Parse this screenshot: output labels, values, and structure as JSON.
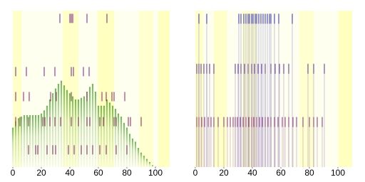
{
  "chart_data": [
    {
      "type": "bar",
      "color": "#4caf2a",
      "xlim": [
        0,
        110
      ],
      "ylim": [
        0,
        1
      ],
      "xticks": [
        0,
        20,
        40,
        60,
        80,
        100
      ],
      "x": [
        0,
        2,
        4,
        6,
        8,
        10,
        12,
        14,
        16,
        18,
        20,
        22,
        24,
        26,
        28,
        30,
        32,
        34,
        36,
        38,
        40,
        42,
        44,
        46,
        48,
        50,
        52,
        54,
        56,
        58,
        60,
        62,
        64,
        66,
        68,
        70,
        72,
        74,
        76,
        78,
        80,
        82,
        84,
        86,
        88,
        90,
        92,
        94,
        96,
        98,
        100
      ],
      "values": [
        0.25,
        0.29,
        0.31,
        0.32,
        0.33,
        0.33,
        0.33,
        0.33,
        0.33,
        0.33,
        0.34,
        0.36,
        0.39,
        0.43,
        0.47,
        0.5,
        0.53,
        0.55,
        0.52,
        0.49,
        0.47,
        0.45,
        0.43,
        0.43,
        0.44,
        0.45,
        0.48,
        0.51,
        0.53,
        0.48,
        0.39,
        0.39,
        0.39,
        0.43,
        0.41,
        0.39,
        0.37,
        0.34,
        0.32,
        0.28,
        0.25,
        0.21,
        0.18,
        0.16,
        0.12,
        0.09,
        0.07,
        0.05,
        0.03,
        0.01,
        0
      ],
      "rugs": [
        {
          "level": 0.98,
          "color": "#7a1e8a",
          "x": [
            33,
            40,
            41,
            42,
            52,
            66
          ]
        },
        {
          "level": 0.64,
          "color": "#7a1e8a",
          "x": [
            2,
            9.5,
            22,
            29.5,
            41,
            42.5,
            49.5,
            53.5
          ]
        },
        {
          "level": 0.48,
          "color": "#8a1e6a",
          "x": [
            2,
            7.5,
            11.5,
            26.5,
            30.5,
            41,
            52,
            62.5,
            65.5,
            69.5,
            71,
            78.5
          ]
        },
        {
          "level": 0.32,
          "color": "#8a1e5a",
          "x": [
            2,
            5,
            11,
            21,
            22.5,
            26,
            29.5,
            33.5,
            41,
            46,
            52,
            54,
            61,
            63.5,
            71,
            72.5,
            81,
            82.5,
            90
          ]
        },
        {
          "level": 0.14,
          "color": "#8a1e5a",
          "x": [
            11,
            16,
            17.5,
            24,
            28,
            30,
            39,
            43,
            48,
            52,
            56,
            61,
            65.5,
            72.5,
            80
          ]
        }
      ]
    },
    {
      "type": "rug",
      "xlim": [
        0,
        110
      ],
      "ylim": [
        0,
        1
      ],
      "xticks": [
        0,
        20,
        40,
        60,
        80,
        100
      ],
      "rugs": [
        {
          "level": 0.98,
          "color": "#2a2ab8",
          "x": [
            2.5,
            8,
            30.5,
            32,
            34,
            35.5,
            37,
            38,
            39.5,
            40.5,
            42,
            43,
            44.5,
            46,
            47.5,
            49,
            50.5,
            52,
            53,
            55.5,
            58.5,
            68
          ]
        },
        {
          "level": 0.66,
          "color": "#5a2a9a",
          "x": [
            1,
            2.5,
            4,
            6,
            8,
            10,
            13,
            28,
            30,
            32,
            34.5,
            37,
            39.5,
            41.5,
            44,
            46.5,
            49,
            53,
            56,
            59,
            62,
            65.5,
            79,
            83,
            90.5
          ]
        },
        {
          "level": 0.32,
          "color": "#8a2a7a",
          "x": [
            1,
            2.5,
            4.5,
            6.5,
            9,
            11,
            13,
            16,
            20,
            22.5,
            24.5,
            26.5,
            28,
            29.5,
            31.5,
            33.5,
            35.5,
            37.5,
            39.5,
            41,
            43,
            45,
            47,
            49,
            51,
            53,
            55.5,
            58,
            61,
            63,
            65.5,
            68.5,
            71,
            75.5,
            80,
            83,
            85.5,
            89
          ]
        }
      ]
    }
  ]
}
